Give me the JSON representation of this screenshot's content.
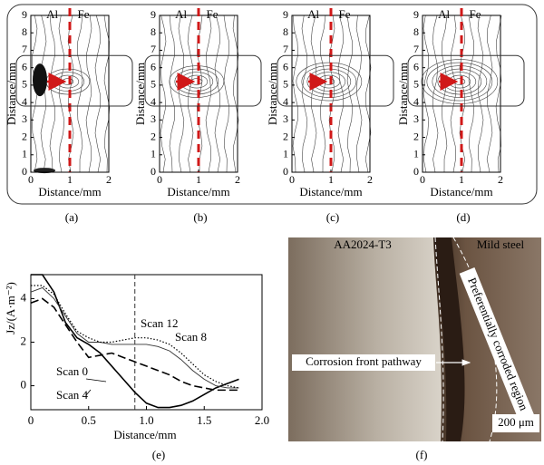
{
  "contour_panels": [
    {
      "caption": "(a)",
      "left_label": "Al",
      "right_label": "Fe",
      "xlabel": "Distance/mm",
      "ylabel": "Distance/mm",
      "xlim": [
        0,
        2
      ],
      "ylim": [
        0,
        9
      ],
      "xticks": [
        0,
        1,
        2
      ],
      "yticks": [
        0,
        1,
        2,
        3,
        4,
        5,
        6,
        7,
        8,
        9
      ]
    },
    {
      "caption": "(b)",
      "left_label": "Al",
      "right_label": "Fe",
      "xlabel": "Distance/mm",
      "ylabel": "Distance/mm",
      "xlim": [
        0,
        2
      ],
      "ylim": [
        0,
        9
      ],
      "xticks": [
        0,
        1,
        2
      ],
      "yticks": [
        0,
        1,
        2,
        3,
        4,
        5,
        6,
        7,
        8,
        9
      ]
    },
    {
      "caption": "(c)",
      "left_label": "Al",
      "right_label": "Fe",
      "xlabel": "Distance/mm",
      "ylabel": "Distance/mm",
      "xlim": [
        0,
        2
      ],
      "ylim": [
        0,
        9
      ],
      "xticks": [
        0,
        1,
        2
      ],
      "yticks": [
        0,
        1,
        2,
        3,
        4,
        5,
        6,
        7,
        8,
        9
      ]
    },
    {
      "caption": "(d)",
      "left_label": "Al",
      "right_label": "Fe",
      "xlabel": "Distance/mm",
      "ylabel": "Distance/mm",
      "xlim": [
        0,
        2
      ],
      "ylim": [
        0,
        9
      ],
      "xticks": [
        0,
        1,
        2
      ],
      "yticks": [
        0,
        1,
        2,
        3,
        4,
        5,
        6,
        7,
        8,
        9
      ]
    }
  ],
  "chart_data": {
    "type": "line",
    "caption": "(e)",
    "xlabel": "Distance/mm",
    "ylabel": "Jz/(A·m⁻²)",
    "x": [
      0,
      0.1,
      0.2,
      0.3,
      0.4,
      0.5,
      0.6,
      0.7,
      0.8,
      0.9,
      1.0,
      1.1,
      1.2,
      1.3,
      1.4,
      1.5,
      1.6,
      1.7,
      1.8
    ],
    "series": [
      {
        "name": "Scan 0",
        "color": "#000000",
        "style": "solid",
        "values": [
          5.1,
          5.1,
          4.3,
          2.9,
          2.2,
          1.9,
          1.5,
          0.9,
          0.3,
          -0.3,
          -0.8,
          -1.0,
          -1.0,
          -0.9,
          -0.7,
          -0.4,
          -0.1,
          0.1,
          0.3
        ]
      },
      {
        "name": "Scan 4",
        "color": "#000000",
        "style": "dashed",
        "values": [
          3.8,
          4.0,
          3.6,
          2.8,
          2.0,
          1.3,
          1.4,
          1.5,
          1.3,
          1.1,
          0.9,
          0.7,
          0.5,
          0.2,
          0.0,
          -0.1,
          -0.2,
          -0.2,
          -0.2
        ]
      },
      {
        "name": "Scan 8",
        "color": "#333333",
        "style": "thin",
        "values": [
          4.3,
          4.5,
          4.0,
          3.2,
          2.4,
          2.0,
          2.0,
          1.9,
          1.9,
          1.9,
          1.9,
          1.8,
          1.6,
          1.2,
          0.7,
          0.3,
          0.0,
          -0.1,
          -0.1
        ]
      },
      {
        "name": "Scan 12",
        "color": "#000000",
        "style": "dotted",
        "values": [
          4.6,
          4.6,
          4.2,
          3.3,
          2.5,
          2.2,
          2.0,
          2.0,
          2.1,
          2.2,
          2.2,
          2.1,
          1.9,
          1.5,
          1.0,
          0.5,
          0.2,
          0.0,
          -0.1
        ]
      }
    ],
    "vline": 0.9,
    "xlim": [
      0,
      2
    ],
    "ylim": [
      -1.1,
      5.1
    ],
    "xticks": [
      0,
      0.5,
      {
        "value": 1,
        "label": "1.0"
      },
      1.5,
      {
        "value": 2,
        "label": "2.0"
      }
    ],
    "yticks": [
      0,
      2,
      4
    ]
  },
  "micrograph": {
    "caption": "(f)",
    "left_label": "AA2024-T3",
    "right_label": "Mild steel",
    "region_label": "Preferentially corroded region",
    "pathway_label": "Corrosion front pathway",
    "scale_label": "200 μm"
  }
}
